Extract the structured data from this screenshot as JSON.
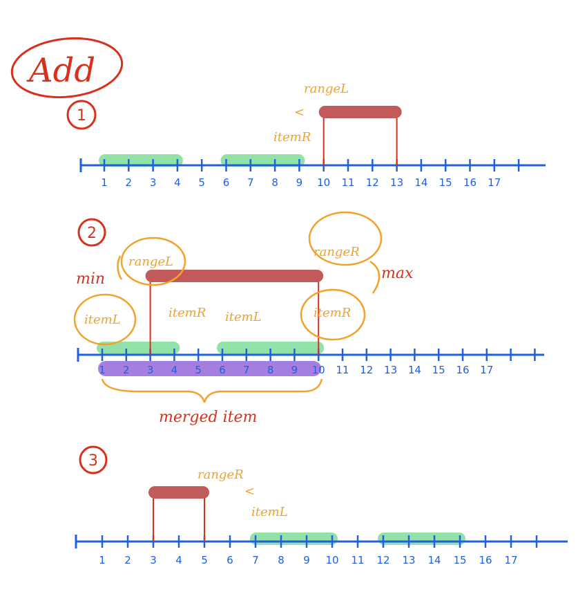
{
  "title": "Add",
  "colors": {
    "axis": "#1f5fe0",
    "item": "#7fdc9a",
    "range": "#c25a5a",
    "merged": "#a47fe0",
    "annotation": "#f2a22b",
    "marker": "#d9301c"
  },
  "steps": [
    {
      "label": "1",
      "tick_labels": [
        "1",
        "2",
        "3",
        "4",
        "5",
        "6",
        "7",
        "8",
        "9",
        "10",
        "11",
        "12",
        "13",
        "14",
        "15",
        "16",
        "17"
      ],
      "items": [
        [
          1,
          4
        ],
        [
          6,
          9
        ]
      ],
      "range": [
        10,
        13
      ],
      "annotations": {
        "a": "rangeL",
        "b": "<",
        "c": "itemR"
      }
    },
    {
      "label": "2",
      "tick_labels": [
        "1",
        "2",
        "3",
        "4",
        "5",
        "6",
        "7",
        "8",
        "9",
        "10",
        "11",
        "12",
        "13",
        "14",
        "15",
        "16",
        "17"
      ],
      "items": [
        [
          1,
          4
        ],
        [
          6,
          10
        ]
      ],
      "range": [
        3,
        10
      ],
      "merged": [
        1,
        10
      ],
      "annotations": {
        "min": "min",
        "rangeL": "rangeL",
        "rangeR": "rangeR",
        "max": "max",
        "itemL1": "itemL",
        "itemR1": "itemR",
        "itemL2": "itemL",
        "itemR2": "itemR",
        "merged_label": "merged item"
      }
    },
    {
      "label": "3",
      "tick_labels": [
        "1",
        "2",
        "3",
        "4",
        "5",
        "6",
        "7",
        "8",
        "9",
        "10",
        "11",
        "12",
        "13",
        "14",
        "15",
        "16",
        "17"
      ],
      "items": [
        [
          7,
          10
        ],
        [
          12,
          15
        ]
      ],
      "range": [
        3,
        5
      ],
      "annotations": {
        "a": "rangeR",
        "b": "<",
        "c": "itemL"
      }
    }
  ]
}
